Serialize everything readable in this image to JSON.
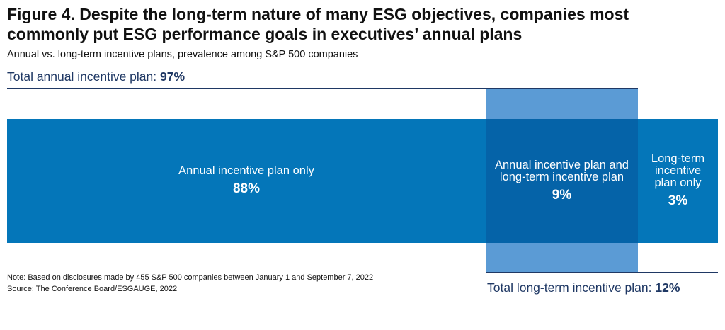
{
  "chart_data": {
    "type": "bar",
    "title": "Figure 4. Despite the long-term nature of many ESG objectives, companies most commonly put ESG performance goals in executives’ annual plans",
    "subtitle": "Annual vs. long-term incentive plans, prevalence among S&P 500 companies",
    "categories": [
      "Annual incentive plan only",
      "Annual incentive plan and long-term incentive plan",
      "Long-term incentive plan only"
    ],
    "values": [
      88,
      9,
      3
    ],
    "value_labels": [
      "88%",
      "9%",
      "3%"
    ],
    "colors": [
      "#0476b9",
      "#0563a8",
      "#0476b9"
    ],
    "totals": [
      {
        "label": "Total annual incentive plan:",
        "value": 97,
        "value_label": "97%",
        "color": "#1f3864"
      },
      {
        "label": "Total long-term incentive plan:",
        "value": 12,
        "value_label": "12%",
        "color": "#5b9bd5"
      }
    ],
    "note": "Note: Based on disclosures made by 455 S&P 500 companies between January 1 and September 7, 2022",
    "source": "Source: The Conference Board/ESGAUGE, 2022"
  }
}
